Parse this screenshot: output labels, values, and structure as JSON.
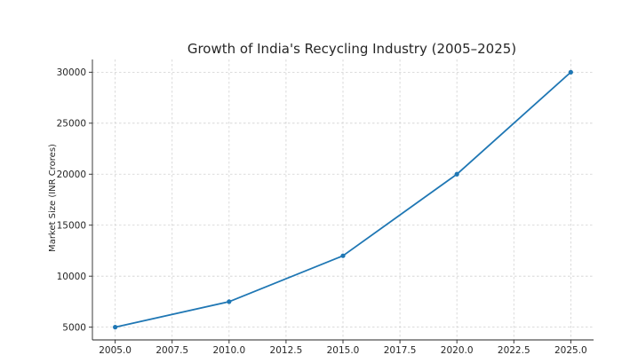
{
  "chart_data": {
    "type": "line",
    "title": "Growth of India's Recycling Industry (2005–2025)",
    "xlabel": "",
    "ylabel": "Market Size (INR Crores)",
    "x": [
      2005,
      2010,
      2015,
      2020,
      2025
    ],
    "series": [
      {
        "values": [
          5000,
          7500,
          12000,
          20000,
          30000
        ]
      }
    ],
    "xlim": [
      2004.0,
      2026.0
    ],
    "ylim": [
      3750,
      31250
    ],
    "x_ticks": [
      2005.0,
      2007.5,
      2010.0,
      2012.5,
      2015.0,
      2017.5,
      2020.0,
      2022.5,
      2025.0
    ],
    "x_tick_labels": [
      "2005.0",
      "2007.5",
      "2010.0",
      "2012.5",
      "2015.0",
      "2017.5",
      "2020.0",
      "2022.5",
      "2025.0"
    ],
    "y_ticks": [
      5000,
      10000,
      15000,
      20000,
      25000,
      30000
    ],
    "y_tick_labels": [
      "5000",
      "10000",
      "15000",
      "20000",
      "25000",
      "30000"
    ],
    "grid": true,
    "marker": "circle",
    "colors": {
      "line": "#1f77b4"
    }
  }
}
